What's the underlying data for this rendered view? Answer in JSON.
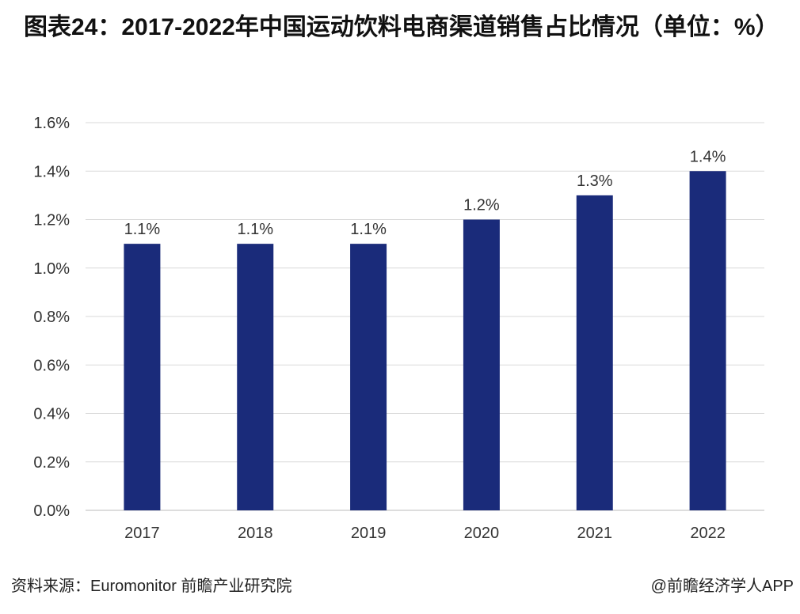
{
  "title": "图表24：2017-2022年中国运动饮料电商渠道销售占比情况（单位：%）",
  "footer": {
    "source": "资料来源：Euromonitor 前瞻产业研究院",
    "credit": "@前瞻经济学人APP"
  },
  "watermark": "前瞻产业研究院",
  "chart_data": {
    "type": "bar",
    "title": "图表24：2017-2022年中国运动饮料电商渠道销售占比情况（单位：%）",
    "categories": [
      "2017",
      "2018",
      "2019",
      "2020",
      "2021",
      "2022"
    ],
    "values": [
      1.1,
      1.1,
      1.1,
      1.2,
      1.3,
      1.4
    ],
    "data_labels": [
      "1.1%",
      "1.1%",
      "1.1%",
      "1.2%",
      "1.3%",
      "1.4%"
    ],
    "ylim": [
      0,
      1.6
    ],
    "yticks": [
      "0.0%",
      "0.2%",
      "0.4%",
      "0.6%",
      "0.8%",
      "1.0%",
      "1.2%",
      "1.4%",
      "1.6%"
    ],
    "grid": true,
    "legend": "none",
    "bar_color": "#1a2b7a",
    "xlabel": "",
    "ylabel": ""
  }
}
